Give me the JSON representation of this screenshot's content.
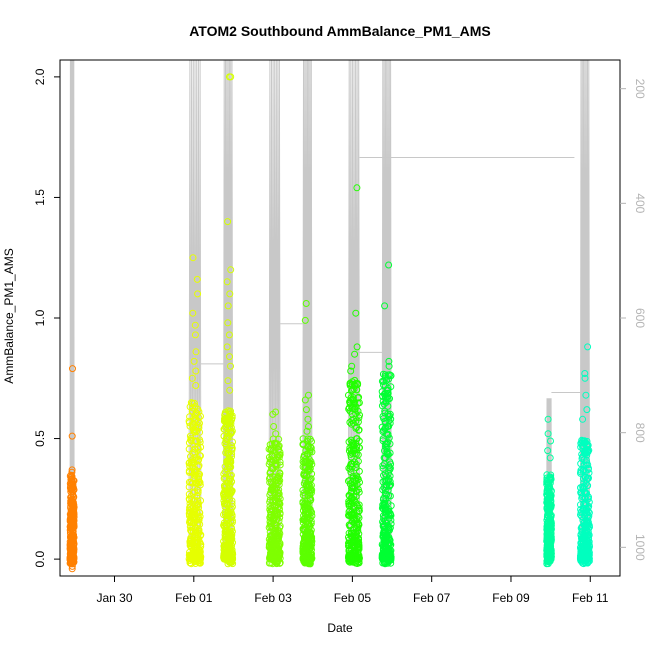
{
  "chart_data": {
    "type": "scatter",
    "title": "ATOM2 Southbound AmmBalance_PM1_AMS",
    "xlabel": "Date",
    "ylabel": "AmmBalance_PM1_AMS",
    "x_ticks": [
      "Jan 30",
      "Feb 01",
      "Feb 03",
      "Feb 05",
      "Feb 07",
      "Feb 09",
      "Feb 11"
    ],
    "y_ticks": [
      "0.0",
      "0.5",
      "1.0",
      "1.5",
      "2.0"
    ],
    "y2_ticks": [
      "200",
      "400",
      "600",
      "800",
      "1000"
    ],
    "xlim": [
      "Jan 28 15:00",
      "Feb 11 18:00"
    ],
    "ylim": [
      -0.07,
      2.07
    ],
    "y2lim": [
      1050,
      150
    ],
    "y2_reversed": true,
    "grid": false,
    "colors": {
      "track_line": "#c8c8c8",
      "axis": "#000000",
      "right_axis": "#b4b4b4",
      "flight_1": "#ff8000",
      "flight_2": "#e6ff00",
      "flight_3": "#d4ff00",
      "flight_4": "#7fff00",
      "flight_5": "#5cff00",
      "flight_6": "#22ff00",
      "flight_7": "#00ff33",
      "flight_8": "#00ffa0",
      "flight_9": "#00ffbf"
    },
    "flights": [
      {
        "date": "Jan 29",
        "start_day": 0.88,
        "end_day": 0.98,
        "color": "#ff8000",
        "y_max": 0.79,
        "dense_top": 0.35,
        "outliers": [
          0.79,
          0.51,
          0.37,
          0.36,
          0.32,
          -0.02,
          -0.03,
          -0.04
        ],
        "altitude_near_ground": 980,
        "altitude_ceiling": 150
      },
      {
        "date": "Feb 01",
        "start_day": 3.88,
        "end_day": 4.18,
        "color": "#e6ff00",
        "y_max": 1.25,
        "dense_top": 0.65,
        "outliers": [
          1.25,
          1.16,
          1.1,
          1.02,
          0.97,
          0.93,
          0.86,
          0.82,
          0.78,
          0.75,
          0.72
        ],
        "altitude_near_ground": 1000,
        "altitude_ceiling": 150
      },
      {
        "date": "Feb 01",
        "start_day": 4.75,
        "end_day": 4.98,
        "color": "#d4ff00",
        "y_max": 2.0,
        "dense_top": 0.62,
        "outliers": [
          2.0,
          2.0,
          1.4,
          1.2,
          1.15,
          1.1,
          1.05,
          0.98,
          0.93,
          0.88,
          0.84,
          0.8,
          0.74,
          0.7
        ],
        "altitude_near_ground": 1000,
        "altitude_ceiling": 150
      },
      {
        "date": "Feb 03",
        "start_day": 5.9,
        "end_day": 6.18,
        "color": "#7fff00",
        "y_max": 0.61,
        "dense_top": 0.5,
        "outliers": [
          0.61,
          0.6,
          0.55,
          0.52
        ],
        "altitude_near_ground": 1000,
        "altitude_ceiling": 150
      },
      {
        "date": "Feb 03",
        "start_day": 6.75,
        "end_day": 6.98,
        "color": "#5cff00",
        "y_max": 1.06,
        "dense_top": 0.5,
        "outliers": [
          1.06,
          0.99,
          0.68,
          0.66,
          0.62,
          0.58,
          0.55,
          0.53
        ],
        "altitude_near_ground": 1000,
        "altitude_ceiling": 150
      },
      {
        "date": "Feb 05",
        "start_day": 7.9,
        "end_day": 8.18,
        "color": "#22ff00",
        "y_max": 1.54,
        "dense_top": 0.75,
        "outliers": [
          1.54,
          1.02,
          0.88,
          0.85,
          0.8,
          0.78
        ],
        "altitude_near_ground": 1000,
        "altitude_ceiling": 150
      },
      {
        "date": "Feb 05",
        "start_day": 8.75,
        "end_day": 8.98,
        "color": "#00ff33",
        "y_max": 1.22,
        "dense_top": 0.78,
        "outliers": [
          1.22,
          1.05,
          0.82,
          0.8
        ],
        "altitude_near_ground": 1000,
        "altitude_ceiling": 150
      },
      {
        "date": "Feb 10",
        "start_day": 12.9,
        "end_day": 13.02,
        "color": "#00ffa0",
        "y_max": 0.58,
        "dense_top": 0.35,
        "outliers": [
          0.58,
          0.52,
          0.49,
          0.45,
          0.42
        ],
        "altitude_near_ground": 1000,
        "altitude_ceiling": 740
      },
      {
        "date": "Feb 11",
        "start_day": 13.75,
        "end_day": 13.98,
        "color": "#00ffbf",
        "y_max": 0.88,
        "dense_top": 0.5,
        "outliers": [
          0.88,
          0.77,
          0.75,
          0.68,
          0.62,
          0.58
        ],
        "altitude_near_ground": 1000,
        "altitude_ceiling": 150
      }
    ],
    "ferry_segments": [
      {
        "from_day": 4.18,
        "to_day": 4.75,
        "altitude": 680
      },
      {
        "from_day": 6.18,
        "to_day": 6.75,
        "altitude": 610
      },
      {
        "from_day": 6.98,
        "to_day": 8.9,
        "altitude": 150
      },
      {
        "from_day": 8.18,
        "to_day": 8.75,
        "altitude": 660
      },
      {
        "from_day": 8.18,
        "to_day": 13.6,
        "altitude": 320
      },
      {
        "from_day": 13.02,
        "to_day": 13.75,
        "altitude": 730
      }
    ]
  }
}
